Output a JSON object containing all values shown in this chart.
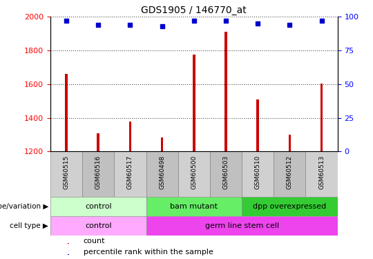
{
  "title": "GDS1905 / 146770_at",
  "samples": [
    "GSM60515",
    "GSM60516",
    "GSM60517",
    "GSM60498",
    "GSM60500",
    "GSM60503",
    "GSM60510",
    "GSM60512",
    "GSM60513"
  ],
  "counts": [
    1660,
    1310,
    1380,
    1285,
    1775,
    1910,
    1510,
    1300,
    1605
  ],
  "percentiles": [
    97,
    94,
    94,
    93,
    97,
    97,
    95,
    94,
    97
  ],
  "ylim_left": [
    1200,
    2000
  ],
  "ylim_right": [
    0,
    100
  ],
  "yticks_left": [
    1200,
    1400,
    1600,
    1800,
    2000
  ],
  "yticks_right": [
    0,
    25,
    50,
    75,
    100
  ],
  "bar_color": "#cc0000",
  "dot_color": "#0000cc",
  "genotype_groups": [
    {
      "label": "control",
      "start": 0,
      "end": 3,
      "color": "#ccffcc"
    },
    {
      "label": "bam mutant",
      "start": 3,
      "end": 6,
      "color": "#66ee66"
    },
    {
      "label": "dpp overexpressed",
      "start": 6,
      "end": 9,
      "color": "#33cc33"
    }
  ],
  "cell_type_groups": [
    {
      "label": "control",
      "start": 0,
      "end": 3,
      "color": "#ffaaff"
    },
    {
      "label": "germ line stem cell",
      "start": 3,
      "end": 9,
      "color": "#ee44ee"
    }
  ],
  "bar_width": 0.08,
  "marker_size": 5,
  "grid_style": "dotted",
  "grid_color": "#000000",
  "grid_linewidth": 0.8,
  "left_tick_color": "red",
  "right_tick_color": "blue",
  "box_colors": [
    "#d0d0d0",
    "#c0c0c0"
  ]
}
